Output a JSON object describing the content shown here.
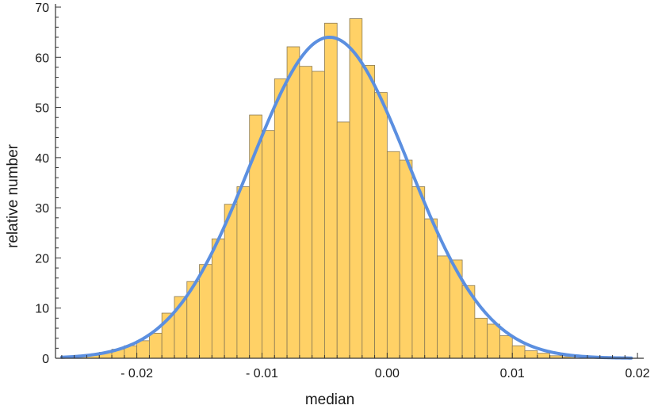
{
  "chart_data": {
    "type": "bar",
    "title": "",
    "xlabel": "median",
    "ylabel": "relative number",
    "xlim": [
      -0.0265,
      0.0205
    ],
    "ylim": [
      0,
      70
    ],
    "bin_width": 0.001,
    "x_ticks": [
      {
        "value": -0.02,
        "label": "- 0.02"
      },
      {
        "value": -0.01,
        "label": "- 0.01"
      },
      {
        "value": 0.0,
        "label": "0.00"
      },
      {
        "value": 0.01,
        "label": "0.01"
      },
      {
        "value": 0.02,
        "label": "0.02"
      }
    ],
    "y_ticks": [
      {
        "value": 0,
        "label": "0"
      },
      {
        "value": 10,
        "label": "10"
      },
      {
        "value": 20,
        "label": "20"
      },
      {
        "value": 30,
        "label": "30"
      },
      {
        "value": 40,
        "label": "40"
      },
      {
        "value": 50,
        "label": "50"
      },
      {
        "value": 60,
        "label": "60"
      },
      {
        "value": 70,
        "label": "70"
      }
    ],
    "bins": [
      {
        "x0": -0.025,
        "x1": -0.024,
        "value": 0.3
      },
      {
        "x0": -0.024,
        "x1": -0.023,
        "value": 0.7
      },
      {
        "x0": -0.023,
        "x1": -0.022,
        "value": 1.2
      },
      {
        "x0": -0.022,
        "x1": -0.021,
        "value": 1.8
      },
      {
        "x0": -0.021,
        "x1": -0.02,
        "value": 2.5
      },
      {
        "x0": -0.02,
        "x1": -0.019,
        "value": 3.5
      },
      {
        "x0": -0.019,
        "x1": -0.018,
        "value": 5.0
      },
      {
        "x0": -0.018,
        "x1": -0.017,
        "value": 9.0
      },
      {
        "x0": -0.017,
        "x1": -0.016,
        "value": 12.3
      },
      {
        "x0": -0.016,
        "x1": -0.015,
        "value": 15.3
      },
      {
        "x0": -0.015,
        "x1": -0.014,
        "value": 18.7
      },
      {
        "x0": -0.014,
        "x1": -0.013,
        "value": 23.8
      },
      {
        "x0": -0.013,
        "x1": -0.012,
        "value": 30.7
      },
      {
        "x0": -0.012,
        "x1": -0.011,
        "value": 34.2
      },
      {
        "x0": -0.011,
        "x1": -0.01,
        "value": 48.5
      },
      {
        "x0": -0.01,
        "x1": -0.009,
        "value": 45.4
      },
      {
        "x0": -0.009,
        "x1": -0.008,
        "value": 55.7
      },
      {
        "x0": -0.008,
        "x1": -0.007,
        "value": 62.1
      },
      {
        "x0": -0.007,
        "x1": -0.006,
        "value": 58.2
      },
      {
        "x0": -0.006,
        "x1": -0.005,
        "value": 57.2
      },
      {
        "x0": -0.005,
        "x1": -0.004,
        "value": 66.8
      },
      {
        "x0": -0.004,
        "x1": -0.003,
        "value": 47.1
      },
      {
        "x0": -0.003,
        "x1": -0.002,
        "value": 67.7
      },
      {
        "x0": -0.002,
        "x1": -0.001,
        "value": 58.4
      },
      {
        "x0": -0.001,
        "x1": 0.0,
        "value": 53.0
      },
      {
        "x0": 0.0,
        "x1": 0.001,
        "value": 41.2
      },
      {
        "x0": 0.001,
        "x1": 0.002,
        "value": 39.5
      },
      {
        "x0": 0.002,
        "x1": 0.003,
        "value": 34.2
      },
      {
        "x0": 0.003,
        "x1": 0.004,
        "value": 27.8
      },
      {
        "x0": 0.004,
        "x1": 0.005,
        "value": 20.4
      },
      {
        "x0": 0.005,
        "x1": 0.006,
        "value": 19.6
      },
      {
        "x0": 0.006,
        "x1": 0.007,
        "value": 14.5
      },
      {
        "x0": 0.007,
        "x1": 0.008,
        "value": 8.0
      },
      {
        "x0": 0.008,
        "x1": 0.009,
        "value": 6.8
      },
      {
        "x0": 0.009,
        "x1": 0.01,
        "value": 4.5
      },
      {
        "x0": 0.01,
        "x1": 0.011,
        "value": 2.5
      },
      {
        "x0": 0.011,
        "x1": 0.012,
        "value": 1.5
      },
      {
        "x0": 0.012,
        "x1": 0.013,
        "value": 1.0
      },
      {
        "x0": 0.013,
        "x1": 0.014,
        "value": 0.5
      },
      {
        "x0": 0.014,
        "x1": 0.015,
        "value": 0.3
      }
    ],
    "fit_curve": {
      "type": "gaussian",
      "mean": -0.0046,
      "sigma": 0.0063,
      "peak": 64.0
    },
    "colors": {
      "bar_fill": "#FFD166",
      "bar_stroke": "#8A7A55",
      "curve": "#5B8FE0",
      "axis": "#333333"
    },
    "grid": false,
    "legend": "none"
  }
}
